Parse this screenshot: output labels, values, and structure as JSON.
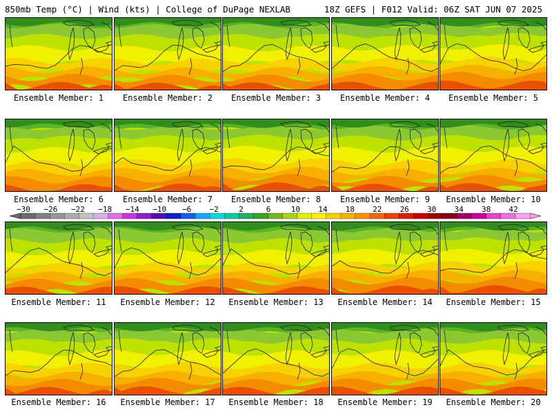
{
  "header": {
    "left_title": "850mb Temp (°C) | Wind (kts) | College of DuPage NEXLAB",
    "right_title": "18Z GEFS | F012 Valid: 06Z SAT JUN 07 2025"
  },
  "panels": [
    {
      "label": "Ensemble Member: 1",
      "heat": 0.55
    },
    {
      "label": "Ensemble Member: 2",
      "heat": 0.45
    },
    {
      "label": "Ensemble Member: 3",
      "heat": 0.5
    },
    {
      "label": "Ensemble Member: 4",
      "heat": 0.6
    },
    {
      "label": "Ensemble Member: 5",
      "heat": 0.75
    },
    {
      "label": "Ensemble Member: 6",
      "heat": 0.45
    },
    {
      "label": "Ensemble Member: 7",
      "heat": 0.55
    },
    {
      "label": "Ensemble Member: 8",
      "heat": 0.7
    },
    {
      "label": "Ensemble Member: 9",
      "heat": 0.5
    },
    {
      "label": "Ensemble Member: 10",
      "heat": 0.6
    },
    {
      "label": "Ensemble Member: 11",
      "heat": 0.5
    },
    {
      "label": "Ensemble Member: 12",
      "heat": 0.55
    },
    {
      "label": "Ensemble Member: 13",
      "heat": 0.55
    },
    {
      "label": "Ensemble Member: 14",
      "heat": 0.65
    },
    {
      "label": "Ensemble Member: 15",
      "heat": 0.7
    },
    {
      "label": "Ensemble Member: 16",
      "heat": 0.55
    },
    {
      "label": "Ensemble Member: 17",
      "heat": 0.65
    },
    {
      "label": "Ensemble Member: 18",
      "heat": 0.55
    },
    {
      "label": "Ensemble Member: 19",
      "heat": 0.6
    },
    {
      "label": "Ensemble Member: 20",
      "heat": 0.6
    }
  ],
  "colorbar": {
    "ticks": [
      "−30",
      "−26",
      "−22",
      "−18",
      "−14",
      "−10",
      "−6",
      "−2",
      "2",
      "6",
      "10",
      "14",
      "18",
      "22",
      "26",
      "30",
      "34",
      "38",
      "42"
    ],
    "colors": [
      "#6b6b6b",
      "#818181",
      "#979797",
      "#adadad",
      "#c3c3c3",
      "#d8b0e8",
      "#e070e8",
      "#c838d8",
      "#9020c0",
      "#5010b0",
      "#1020c8",
      "#1060e8",
      "#10a8f0",
      "#10d8d8",
      "#10c8a0",
      "#20b060",
      "#40a020",
      "#70b820",
      "#a8d020",
      "#e0f000",
      "#f8f000",
      "#f8d000",
      "#f8b000",
      "#f89000",
      "#f06800",
      "#e84000",
      "#d82000",
      "#c00000",
      "#980000",
      "#800020",
      "#a00060",
      "#c800a0",
      "#e840c8",
      "#f070e0",
      "#f8a0f0"
    ]
  },
  "legend_colors": {
    "c_m2": "#328c1e",
    "c_2": "#5ab428",
    "c_6": "#8cc832",
    "c_10": "#bee100",
    "c_14": "#f0f000",
    "c_18": "#f8d200",
    "c_22": "#f8b000",
    "c_26": "#f38c00",
    "c_30": "#e85000"
  }
}
